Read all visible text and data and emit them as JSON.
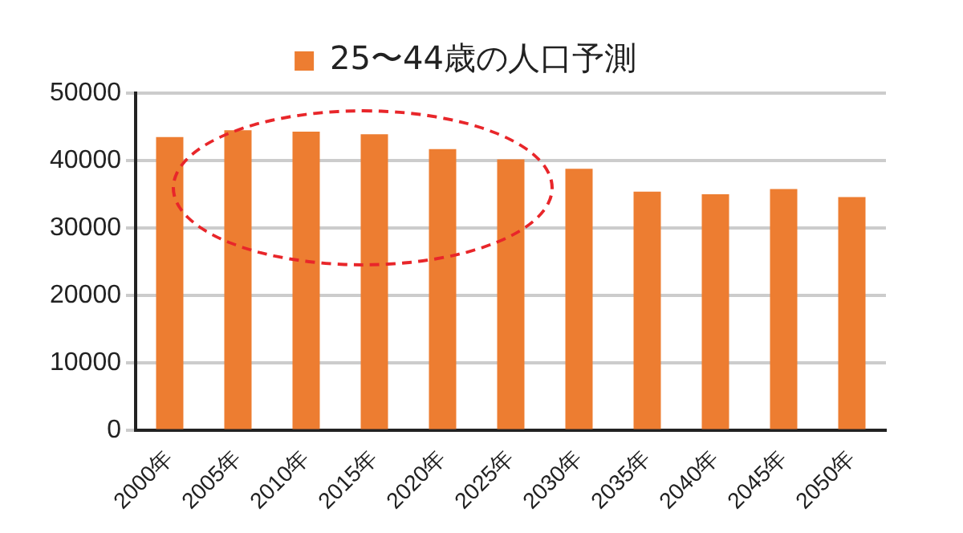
{
  "chart_data": {
    "type": "bar",
    "categories": [
      "2000年",
      "2005年",
      "2010年",
      "2015年",
      "2020年",
      "2025年",
      "2030年",
      "2035年",
      "2040年",
      "2045年",
      "2050年"
    ],
    "series": [
      {
        "name": "25〜44歳の人口予測",
        "color": "#ed7d31",
        "values": [
          43500,
          44500,
          44300,
          43900,
          41700,
          40200,
          38800,
          35400,
          35000,
          35800,
          34600
        ]
      }
    ],
    "ylim": [
      0,
      50000
    ],
    "yticks": [
      0,
      10000,
      20000,
      30000,
      40000,
      50000
    ],
    "grid": "y",
    "legend": "top"
  }
}
